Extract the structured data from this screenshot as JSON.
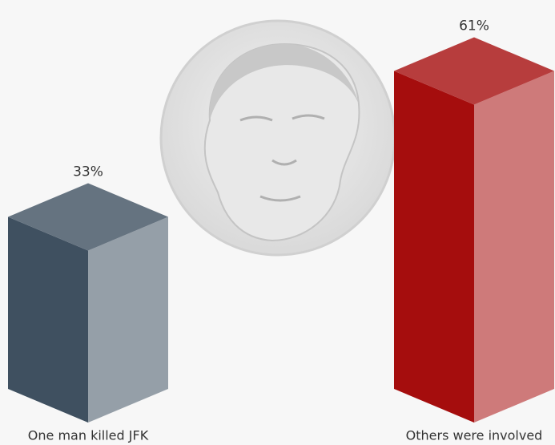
{
  "chart_data": {
    "type": "bar3d",
    "categories": [
      "One man killed JFK",
      "Others were involved"
    ],
    "values": [
      33,
      61
    ],
    "value_labels": [
      "33%",
      "61%"
    ],
    "colors": [
      "#3f5060",
      "#a50d0d"
    ]
  }
}
